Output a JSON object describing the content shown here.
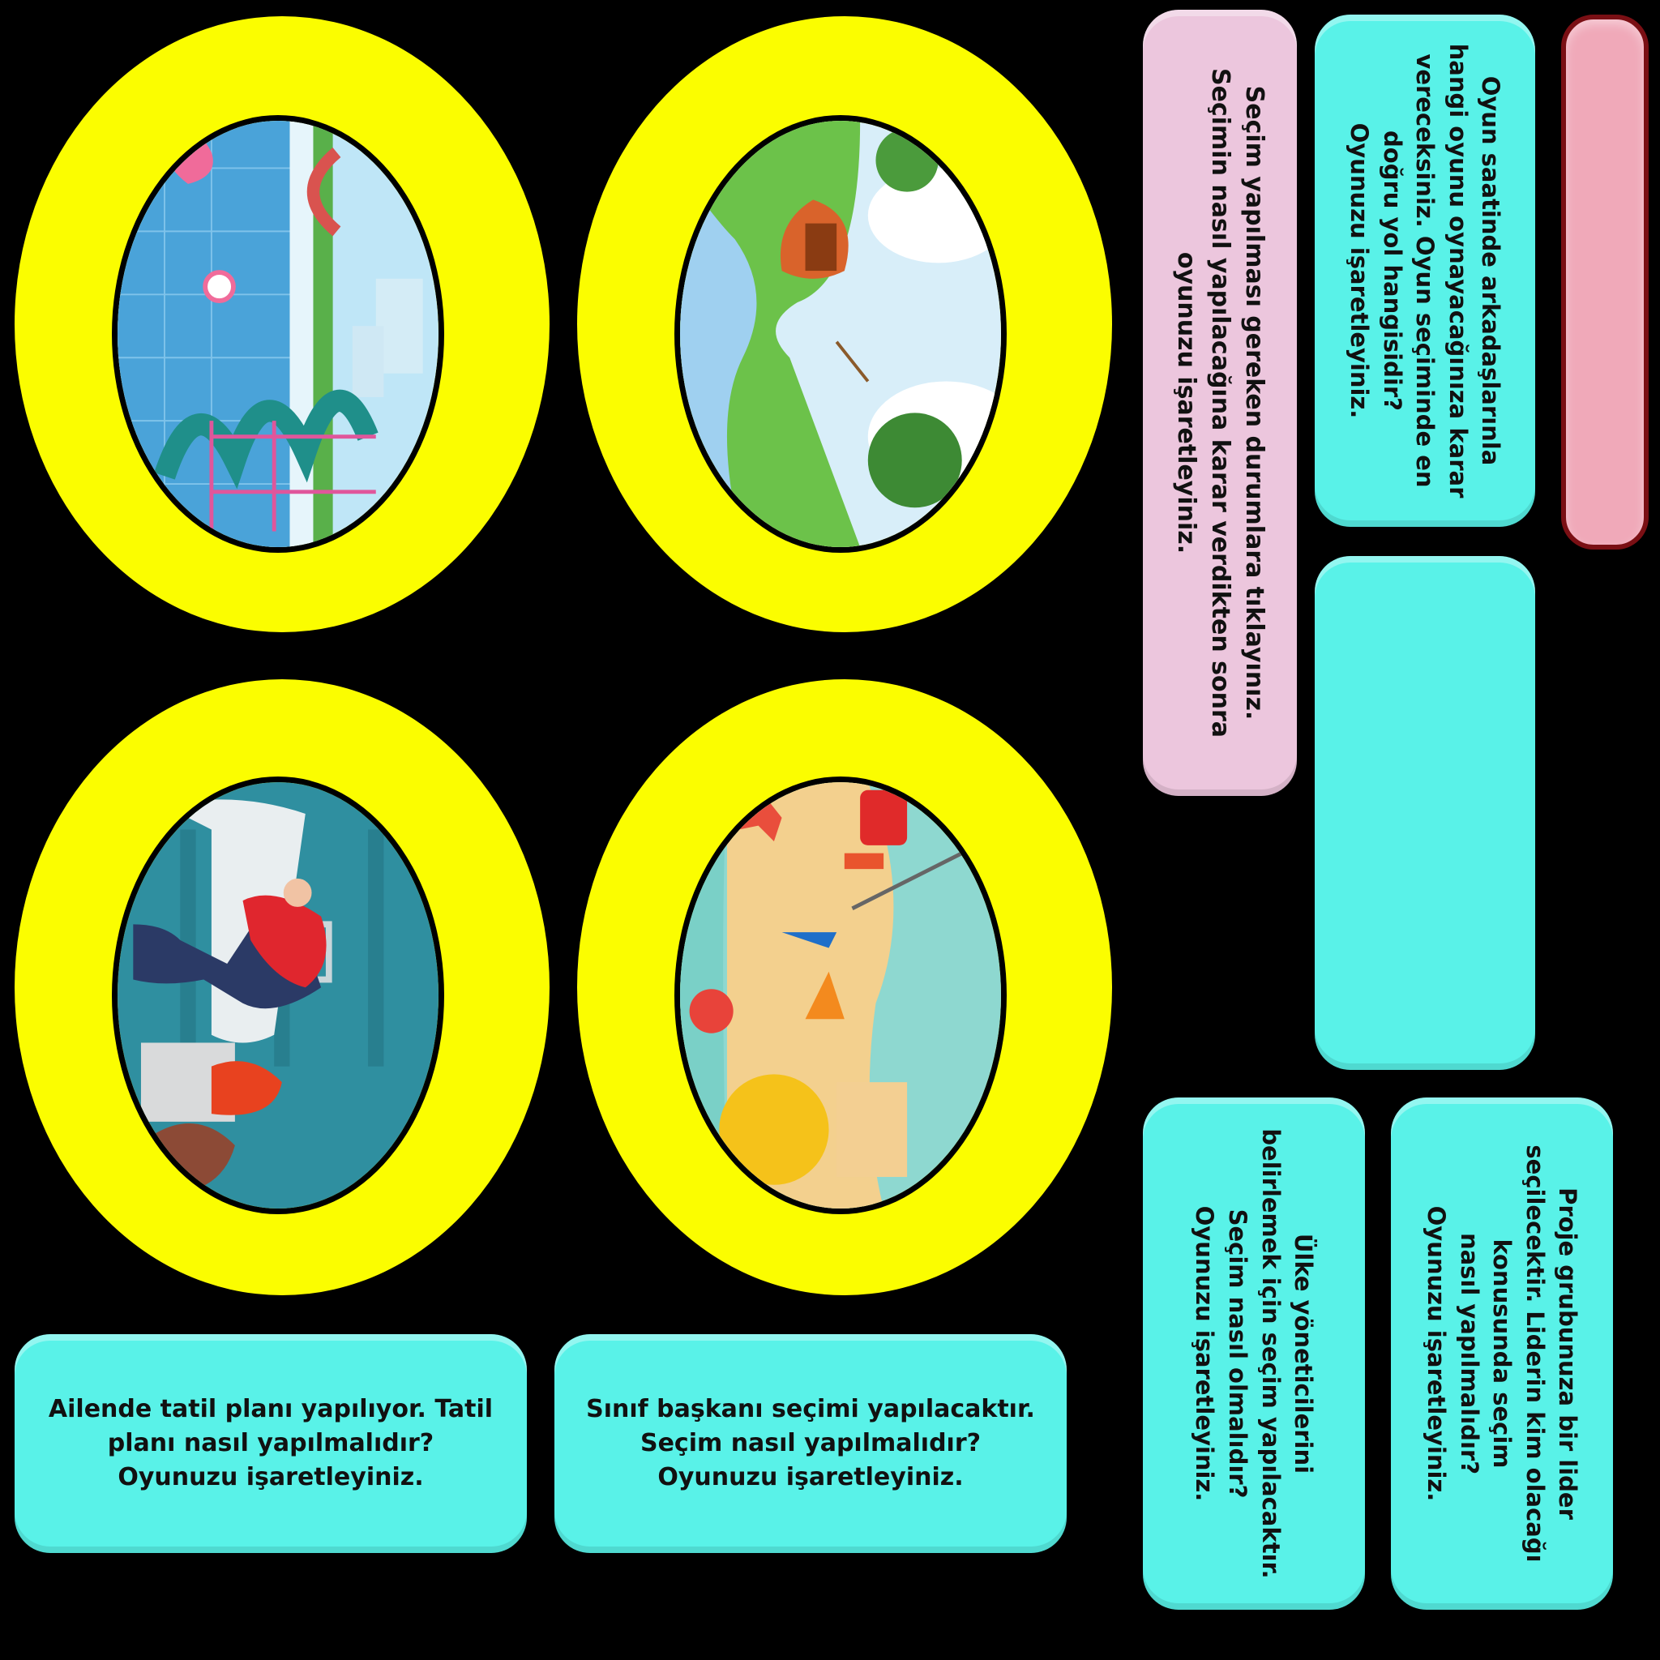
{
  "colors": {
    "background": "#000000",
    "ring": "#fbfd00",
    "card": "#59f2e8",
    "instruction_card": "#ecc6dd",
    "header_card": "#f0a9b9",
    "header_border": "#7a0f14"
  },
  "instruction": {
    "text": "Seçim yapılması gereken durumlara tıklayınız.\nSeçimin nasıl yapılacağına karar verdikten sonra\noyunuzu işaretleyiniz."
  },
  "cards": {
    "playground": "Oyun saatinde arkadaşlarınla\nhangi oyunu oynayacağınıza karar\nvereceksiniz. Oyun seçiminde en\ndoğru yol hangisidir?\nOyunuzu işaretleyiniz.",
    "project": "Proje grubunuza bir lider\nseçilecektir. Liderin kim olacağı\nkonusunda seçim\nnasıl yapılmalıdır?\nOyunuzu işaretleyiniz.",
    "country": "Ülke yöneticilerini\nbelirlemek için seçim yapılacaktır.\nSeçim nasıl olmalıdır?\nOyunuzu işaretleyiniz.",
    "vacation": "Ailende tatil planı yapılıyor. Tatil\nplanı nasıl yapılmalıdır?\nOyunuzu işaretleyiniz.",
    "class_president": "Sınıf başkanı seçimi yapılacaktır.\nSeçim nasıl yapılmalıdır?\nOyunuzu işaretleyiniz."
  },
  "scenes": [
    "water-park-scene",
    "camping-scene",
    "museum-scene",
    "beach-scene"
  ]
}
